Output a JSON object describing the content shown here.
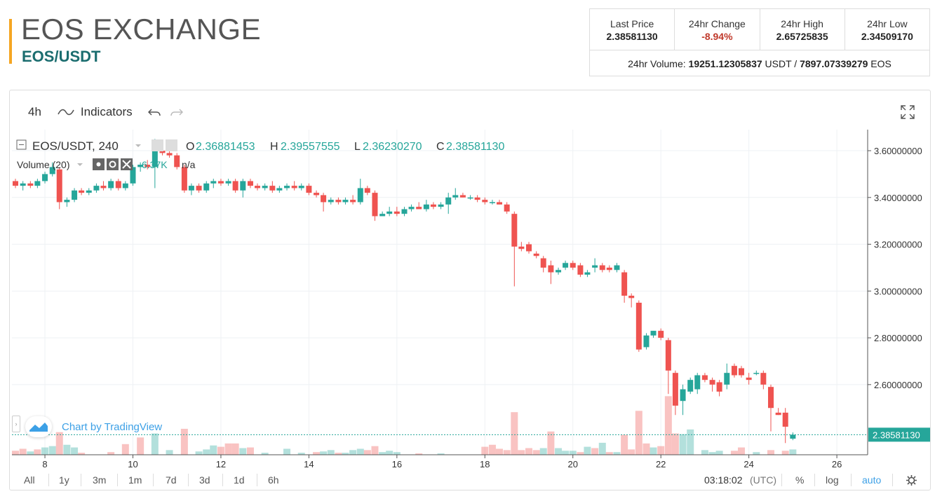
{
  "header": {
    "title": "EOS EXCHANGE",
    "pair": "EOS/USDT"
  },
  "stats": {
    "last_price_label": "Last Price",
    "last_price": "2.38581130",
    "change_label": "24hr Change",
    "change": "-8.94%",
    "high_label": "24hr High",
    "high": "2.65725835",
    "low_label": "24hr Low",
    "low": "2.34509170",
    "volume_label": "24hr Volume:",
    "volume_usdt": "19251.12305837",
    "volume_usdt_unit": "USDT /",
    "volume_eos": "7897.07339279",
    "volume_eos_unit": "EOS"
  },
  "toolbar": {
    "interval": "4h",
    "indicators": "Indicators"
  },
  "legend": {
    "symbol": "EOS/USDT, 240",
    "o_label": "O",
    "o": "2.36881453",
    "h_label": "H",
    "h": "2.39557555",
    "l_label": "L",
    "l": "2.36230270",
    "c_label": "C",
    "c": "2.38581130",
    "volume_label": "Volume (20)",
    "volume_value": "6.37K",
    "volume_na": "n/a"
  },
  "watermark": "Chart by TradingView",
  "bottom": {
    "ranges": [
      "All",
      "1y",
      "3m",
      "1m",
      "7d",
      "3d",
      "1d",
      "6h"
    ],
    "time": "03:18:02",
    "tz": "(UTC)",
    "pct": "%",
    "log": "log",
    "auto": "auto"
  },
  "colors": {
    "up": "#26a69a",
    "down": "#ef5350",
    "accent": "#f5a623",
    "pair": "#1b6d6f"
  },
  "chart_data": {
    "type": "candlestick",
    "title": "EOS/USDT, 240",
    "x_ticks": [
      "8",
      "10",
      "12",
      "14",
      "16",
      "18",
      "20",
      "22",
      "24",
      "26"
    ],
    "x_tick_values": [
      8,
      10,
      12,
      14,
      16,
      18,
      20,
      22,
      24,
      26
    ],
    "x_range": [
      7.25,
      26.7
    ],
    "ylim": [
      2.3,
      3.69
    ],
    "y_ticks": [
      "3.60000000",
      "3.40000000",
      "3.20000000",
      "3.00000000",
      "2.80000000",
      "2.60000000"
    ],
    "y_tick_values": [
      3.6,
      3.4,
      3.2,
      3.0,
      2.8,
      2.6
    ],
    "last_price_label": "2.38581130",
    "last_price": 2.3858113,
    "grid": true,
    "ohlc": [
      [
        7.33,
        3.47,
        3.48,
        3.44,
        3.45
      ],
      [
        7.5,
        3.45,
        3.47,
        3.43,
        3.46
      ],
      [
        7.67,
        3.46,
        3.47,
        3.44,
        3.45
      ],
      [
        7.83,
        3.45,
        3.48,
        3.44,
        3.47
      ],
      [
        8.0,
        3.47,
        3.51,
        3.46,
        3.5
      ],
      [
        8.17,
        3.5,
        3.55,
        3.49,
        3.53
      ],
      [
        8.33,
        3.52,
        3.53,
        3.35,
        3.38
      ],
      [
        8.5,
        3.38,
        3.4,
        3.36,
        3.39
      ],
      [
        8.67,
        3.39,
        3.44,
        3.38,
        3.43
      ],
      [
        8.83,
        3.43,
        3.44,
        3.41,
        3.42
      ],
      [
        9.0,
        3.42,
        3.44,
        3.41,
        3.43
      ],
      [
        9.17,
        3.43,
        3.46,
        3.42,
        3.45
      ],
      [
        9.33,
        3.45,
        3.47,
        3.43,
        3.44
      ],
      [
        9.5,
        3.44,
        3.48,
        3.43,
        3.47
      ],
      [
        9.67,
        3.47,
        3.48,
        3.43,
        3.44
      ],
      [
        9.83,
        3.44,
        3.47,
        3.43,
        3.46
      ],
      [
        10.0,
        3.46,
        3.54,
        3.45,
        3.53
      ],
      [
        10.17,
        3.53,
        3.55,
        3.51,
        3.54
      ],
      [
        10.33,
        3.54,
        3.56,
        3.52,
        3.53
      ],
      [
        10.5,
        3.53,
        3.65,
        3.44,
        3.6
      ],
      [
        10.67,
        3.6,
        3.61,
        3.58,
        3.59
      ],
      [
        10.83,
        3.59,
        3.6,
        3.57,
        3.58
      ],
      [
        11.0,
        3.58,
        3.59,
        3.52,
        3.53
      ],
      [
        11.17,
        3.53,
        3.54,
        3.42,
        3.43
      ],
      [
        11.33,
        3.43,
        3.46,
        3.41,
        3.45
      ],
      [
        11.5,
        3.45,
        3.46,
        3.42,
        3.43
      ],
      [
        11.67,
        3.43,
        3.47,
        3.42,
        3.46
      ],
      [
        11.83,
        3.46,
        3.48,
        3.44,
        3.47
      ],
      [
        12.0,
        3.47,
        3.48,
        3.45,
        3.46
      ],
      [
        12.17,
        3.46,
        3.48,
        3.45,
        3.47
      ],
      [
        12.33,
        3.47,
        3.48,
        3.42,
        3.43
      ],
      [
        12.5,
        3.43,
        3.48,
        3.4,
        3.47
      ],
      [
        12.67,
        3.47,
        3.48,
        3.44,
        3.45
      ],
      [
        12.83,
        3.45,
        3.46,
        3.43,
        3.44
      ],
      [
        13.0,
        3.44,
        3.46,
        3.43,
        3.45
      ],
      [
        13.17,
        3.45,
        3.47,
        3.42,
        3.43
      ],
      [
        13.33,
        3.43,
        3.45,
        3.42,
        3.44
      ],
      [
        13.5,
        3.44,
        3.46,
        3.43,
        3.45
      ],
      [
        13.67,
        3.45,
        3.47,
        3.43,
        3.44
      ],
      [
        13.83,
        3.44,
        3.46,
        3.43,
        3.45
      ],
      [
        14.0,
        3.45,
        3.46,
        3.41,
        3.42
      ],
      [
        14.17,
        3.42,
        3.43,
        3.4,
        3.41
      ],
      [
        14.33,
        3.41,
        3.42,
        3.34,
        3.38
      ],
      [
        14.5,
        3.38,
        3.4,
        3.37,
        3.39
      ],
      [
        14.67,
        3.39,
        3.4,
        3.37,
        3.38
      ],
      [
        14.83,
        3.38,
        3.4,
        3.37,
        3.39
      ],
      [
        15.0,
        3.39,
        3.41,
        3.37,
        3.38
      ],
      [
        15.17,
        3.38,
        3.48,
        3.37,
        3.44
      ],
      [
        15.33,
        3.44,
        3.45,
        3.41,
        3.42
      ],
      [
        15.5,
        3.42,
        3.43,
        3.3,
        3.32
      ],
      [
        15.67,
        3.32,
        3.34,
        3.32,
        3.33
      ],
      [
        15.83,
        3.33,
        3.36,
        3.32,
        3.34
      ],
      [
        16.0,
        3.34,
        3.36,
        3.32,
        3.33
      ],
      [
        16.17,
        3.33,
        3.36,
        3.32,
        3.35
      ],
      [
        16.33,
        3.35,
        3.37,
        3.34,
        3.36
      ],
      [
        16.5,
        3.36,
        3.38,
        3.35,
        3.35
      ],
      [
        16.67,
        3.35,
        3.39,
        3.34,
        3.37
      ],
      [
        16.83,
        3.37,
        3.38,
        3.35,
        3.36
      ],
      [
        17.0,
        3.36,
        3.38,
        3.35,
        3.37
      ],
      [
        17.17,
        3.37,
        3.42,
        3.33,
        3.4
      ],
      [
        17.33,
        3.4,
        3.44,
        3.39,
        3.41
      ],
      [
        17.5,
        3.41,
        3.42,
        3.4,
        3.4
      ],
      [
        17.67,
        3.4,
        3.41,
        3.39,
        3.4
      ],
      [
        17.83,
        3.4,
        3.41,
        3.38,
        3.39
      ],
      [
        18.0,
        3.39,
        3.4,
        3.37,
        3.38
      ],
      [
        18.17,
        3.38,
        3.39,
        3.37,
        3.38
      ],
      [
        18.33,
        3.38,
        3.39,
        3.37,
        3.37
      ],
      [
        18.5,
        3.37,
        3.38,
        3.33,
        3.34
      ],
      [
        18.67,
        3.33,
        3.34,
        3.02,
        3.19
      ],
      [
        18.83,
        3.19,
        3.21,
        3.17,
        3.18
      ],
      [
        19.0,
        3.2,
        3.21,
        3.16,
        3.17
      ],
      [
        19.17,
        3.16,
        3.17,
        3.14,
        3.15
      ],
      [
        19.33,
        3.14,
        3.15,
        3.08,
        3.1
      ],
      [
        19.5,
        3.11,
        3.13,
        3.03,
        3.08
      ],
      [
        19.67,
        3.08,
        3.1,
        3.07,
        3.09
      ],
      [
        19.83,
        3.1,
        3.13,
        3.09,
        3.12
      ],
      [
        20.0,
        3.12,
        3.13,
        3.09,
        3.1
      ],
      [
        20.17,
        3.11,
        3.12,
        3.06,
        3.07
      ],
      [
        20.33,
        3.07,
        3.09,
        3.06,
        3.08
      ],
      [
        20.5,
        3.1,
        3.14,
        3.08,
        3.11
      ],
      [
        20.67,
        3.11,
        3.12,
        3.08,
        3.09
      ],
      [
        20.83,
        3.1,
        3.11,
        3.08,
        3.09
      ],
      [
        21.0,
        3.09,
        3.12,
        3.08,
        3.11
      ],
      [
        21.17,
        3.08,
        3.09,
        2.95,
        2.98
      ],
      [
        21.33,
        2.98,
        2.99,
        2.93,
        2.97
      ],
      [
        21.5,
        2.95,
        2.96,
        2.74,
        2.75
      ],
      [
        21.67,
        2.76,
        2.82,
        2.75,
        2.81
      ],
      [
        21.83,
        2.81,
        2.83,
        2.8,
        2.83
      ],
      [
        22.0,
        2.83,
        2.84,
        2.79,
        2.8
      ],
      [
        22.17,
        2.79,
        2.8,
        2.56,
        2.66
      ],
      [
        22.33,
        2.65,
        2.66,
        2.47,
        2.51
      ],
      [
        22.5,
        2.53,
        2.6,
        2.47,
        2.58
      ],
      [
        22.67,
        2.57,
        2.63,
        2.56,
        2.62
      ],
      [
        22.83,
        2.58,
        2.65,
        2.56,
        2.64
      ],
      [
        23.0,
        2.64,
        2.65,
        2.61,
        2.62
      ],
      [
        23.17,
        2.62,
        2.63,
        2.57,
        2.6
      ],
      [
        23.33,
        2.61,
        2.62,
        2.55,
        2.57
      ],
      [
        23.5,
        2.6,
        2.69,
        2.58,
        2.65
      ],
      [
        23.67,
        2.68,
        2.69,
        2.63,
        2.64
      ],
      [
        23.83,
        2.67,
        2.68,
        2.63,
        2.64
      ],
      [
        24.0,
        2.63,
        2.65,
        2.6,
        2.62
      ],
      [
        24.17,
        2.65,
        2.66,
        2.64,
        2.65
      ],
      [
        24.33,
        2.65,
        2.66,
        2.58,
        2.6
      ],
      [
        24.5,
        2.59,
        2.6,
        2.4,
        2.5
      ],
      [
        24.67,
        2.48,
        2.5,
        2.47,
        2.47
      ],
      [
        24.83,
        2.48,
        2.5,
        2.35,
        2.42
      ],
      [
        25.0,
        2.36881453,
        2.39557555,
        2.3623027,
        2.3858113
      ]
    ],
    "volume_note": "volume histogram, relative heights",
    "volume": [
      [
        7.33,
        0.06,
        "down"
      ],
      [
        7.5,
        0.09,
        "down"
      ],
      [
        7.67,
        0.05,
        "up"
      ],
      [
        7.83,
        0.08,
        "down"
      ],
      [
        8.0,
        0.11,
        "up"
      ],
      [
        8.17,
        0.13,
        "up"
      ],
      [
        8.33,
        0.34,
        "down"
      ],
      [
        8.5,
        0.15,
        "up"
      ],
      [
        8.67,
        0.11,
        "up"
      ],
      [
        8.83,
        0.03,
        "down"
      ],
      [
        9.5,
        0.04,
        "down"
      ],
      [
        9.83,
        0.16,
        "down"
      ],
      [
        10.17,
        0.26,
        "down"
      ],
      [
        10.5,
        0.32,
        "up"
      ],
      [
        10.83,
        0.07,
        "up"
      ],
      [
        11.17,
        0.39,
        "down"
      ],
      [
        11.5,
        0.05,
        "up"
      ],
      [
        11.67,
        0.08,
        "up"
      ],
      [
        11.83,
        0.14,
        "up"
      ],
      [
        12.0,
        0.12,
        "down"
      ],
      [
        12.17,
        0.17,
        "down"
      ],
      [
        12.33,
        0.17,
        "down"
      ],
      [
        12.5,
        0.1,
        "up"
      ],
      [
        12.67,
        0.11,
        "down"
      ],
      [
        13.0,
        0.03,
        "up"
      ],
      [
        13.5,
        0.09,
        "up"
      ],
      [
        13.83,
        0.03,
        "up"
      ],
      [
        14.17,
        0.04,
        "down"
      ],
      [
        14.33,
        0.05,
        "up"
      ],
      [
        14.5,
        0.07,
        "up"
      ],
      [
        14.67,
        0.03,
        "down"
      ],
      [
        14.83,
        0.03,
        "up"
      ],
      [
        15.0,
        0.07,
        "up"
      ],
      [
        15.17,
        0.09,
        "up"
      ],
      [
        15.33,
        0.07,
        "down"
      ],
      [
        15.5,
        0.13,
        "down"
      ],
      [
        15.67,
        0.04,
        "up"
      ],
      [
        15.83,
        0.06,
        "up"
      ],
      [
        16.0,
        0.04,
        "up"
      ],
      [
        16.5,
        0.02,
        "down"
      ],
      [
        17.0,
        0.02,
        "up"
      ],
      [
        18.0,
        0.12,
        "down"
      ],
      [
        18.17,
        0.15,
        "down"
      ],
      [
        18.33,
        0.09,
        "down"
      ],
      [
        18.5,
        0.07,
        "down"
      ],
      [
        18.67,
        0.64,
        "down"
      ],
      [
        18.83,
        0.07,
        "down"
      ],
      [
        19.0,
        0.1,
        "down"
      ],
      [
        19.17,
        0.07,
        "down"
      ],
      [
        19.33,
        0.1,
        "up"
      ],
      [
        19.5,
        0.35,
        "down"
      ],
      [
        19.67,
        0.1,
        "up"
      ],
      [
        19.83,
        0.06,
        "up"
      ],
      [
        20.0,
        0.06,
        "up"
      ],
      [
        20.17,
        0.04,
        "down"
      ],
      [
        20.33,
        0.12,
        "up"
      ],
      [
        20.5,
        0.1,
        "down"
      ],
      [
        20.67,
        0.18,
        "up"
      ],
      [
        20.83,
        0.04,
        "down"
      ],
      [
        21.0,
        0.04,
        "up"
      ],
      [
        21.17,
        0.3,
        "down"
      ],
      [
        21.33,
        0.08,
        "down"
      ],
      [
        21.5,
        0.66,
        "down"
      ],
      [
        21.67,
        0.17,
        "down"
      ],
      [
        21.83,
        0.11,
        "up"
      ],
      [
        22.0,
        0.13,
        "down"
      ],
      [
        22.17,
        0.88,
        "down"
      ],
      [
        22.33,
        0.32,
        "down"
      ],
      [
        22.5,
        0.31,
        "up"
      ],
      [
        22.67,
        0.38,
        "up"
      ],
      [
        23.0,
        0.07,
        "up"
      ],
      [
        23.17,
        0.04,
        "up"
      ],
      [
        23.33,
        0.06,
        "up"
      ],
      [
        23.67,
        0.06,
        "down"
      ],
      [
        23.83,
        0.11,
        "down"
      ],
      [
        24.17,
        0.04,
        "up"
      ],
      [
        24.5,
        0.07,
        "down"
      ],
      [
        24.83,
        0.06,
        "down"
      ],
      [
        25.0,
        0.08,
        "up"
      ]
    ]
  }
}
